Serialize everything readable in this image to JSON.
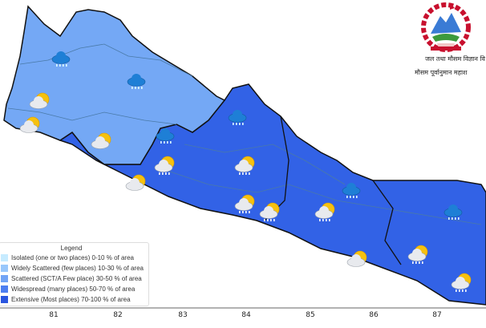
{
  "map": {
    "x_ticks": [
      "81",
      "82",
      "83",
      "84",
      "85",
      "86",
      "87"
    ],
    "region_colors": {
      "west": "#74a8f5",
      "east": "#3262e6",
      "border": "#111111",
      "district": "#4a7aa8"
    }
  },
  "legend": {
    "title": "Legend",
    "items": [
      {
        "label": "Isolated (one or two places)  0-10 % of area",
        "color": "#c6ebff"
      },
      {
        "label": "Widely Scattered (few places)  10-30 % of area",
        "color": "#99c7fb"
      },
      {
        "label": "Scattered (SCT/A Few place)  30-50 % of area",
        "color": "#72a4f5"
      },
      {
        "label": "Widespread (many places)  50-70 % of area",
        "color": "#4d7ef0"
      },
      {
        "label": "Extensive (Most places)  70-100 % of area",
        "color": "#2a55df"
      }
    ]
  },
  "logo": {
    "line1": "जल तथा मौसम विज्ञान वि",
    "line2": "मौसम पूर्वानुमान महाश"
  },
  "icons": {
    "rain": [
      [
        78,
        72
      ],
      [
        172,
        100
      ],
      [
        298,
        145
      ],
      [
        208,
        168
      ],
      [
        440,
        236
      ],
      [
        567,
        263
      ]
    ],
    "sun_cloud": [
      [
        50,
        128
      ],
      [
        38,
        158
      ],
      [
        127,
        178
      ]
    ],
    "sun_cloud_rain": [
      [
        170,
        230
      ],
      [
        206,
        207
      ],
      [
        306,
        207
      ],
      [
        306,
        255
      ],
      [
        337,
        265
      ],
      [
        406,
        265
      ],
      [
        446,
        325
      ],
      [
        522,
        318
      ],
      [
        576,
        353
      ]
    ]
  }
}
